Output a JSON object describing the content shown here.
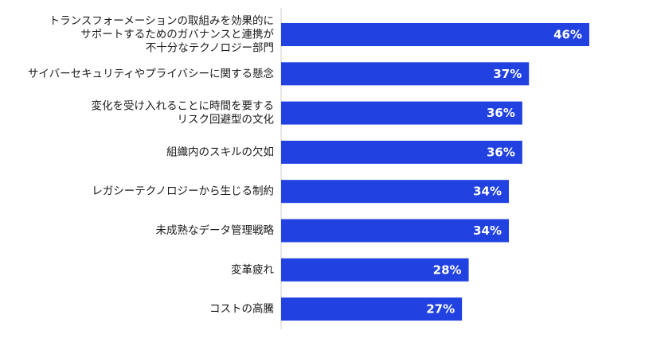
{
  "chart_data": {
    "type": "bar",
    "orientation": "horizontal",
    "categories": [
      [
        "トランスフォーメーションの取組みを効果的に",
        "サポートするためのガバナンスと連携が",
        "不十分なテクノロジー部門"
      ],
      [
        "サイバーセキュリティやプライバシーに関する懸念"
      ],
      [
        "変化を受け入れることに時間を要する",
        "リスク回避型の文化"
      ],
      [
        "組織内のスキルの欠如"
      ],
      [
        "レガシーテクノロジーから生じる制約"
      ],
      [
        "未成熟なデータ管理戦略"
      ],
      [
        "変革疲れ"
      ],
      [
        "コストの高騰"
      ]
    ],
    "values": [
      46,
      37,
      36,
      36,
      34,
      34,
      28,
      27
    ],
    "value_labels": [
      "46%",
      "37%",
      "36%",
      "36%",
      "34%",
      "34%",
      "28%",
      "27%"
    ],
    "xlim": [
      0,
      55
    ],
    "bar_color": "#2142e0",
    "axis_color": "#cccccc",
    "grid": false,
    "legend": false
  }
}
